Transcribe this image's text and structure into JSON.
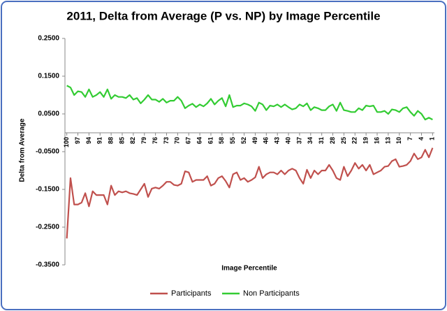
{
  "chart_data": {
    "type": "line",
    "title": "2011, Delta from Average (P vs. NP) by Image Percentile",
    "x_label": "Image Percentile",
    "y_label": "Delta from Average",
    "categories": [
      100,
      null,
      null,
      97,
      null,
      null,
      94,
      null,
      null,
      91,
      null,
      null,
      88,
      null,
      null,
      85,
      null,
      null,
      82,
      null,
      null,
      79,
      null,
      null,
      76,
      null,
      null,
      73,
      null,
      null,
      70,
      null,
      null,
      67,
      null,
      null,
      64,
      null,
      null,
      61,
      null,
      null,
      58,
      null,
      null,
      55,
      null,
      null,
      52,
      null,
      null,
      49,
      null,
      null,
      46,
      null,
      null,
      43,
      null,
      null,
      40,
      null,
      null,
      37,
      null,
      null,
      34,
      null,
      null,
      31,
      null,
      null,
      28,
      null,
      null,
      25,
      null,
      null,
      22,
      null,
      null,
      19,
      null,
      null,
      16,
      null,
      null,
      13,
      null,
      null,
      10,
      null,
      null,
      7,
      null,
      null,
      4,
      null,
      null,
      1
    ],
    "series": [
      {
        "name": "Participants",
        "color": "#c0504d",
        "values": [
          -0.28,
          -0.12,
          -0.19,
          -0.19,
          -0.185,
          -0.16,
          -0.195,
          -0.155,
          -0.165,
          -0.165,
          -0.165,
          -0.19,
          -0.14,
          -0.165,
          -0.155,
          -0.158,
          -0.155,
          -0.16,
          -0.162,
          -0.165,
          -0.15,
          -0.135,
          -0.17,
          -0.148,
          -0.145,
          -0.148,
          -0.14,
          -0.13,
          -0.13,
          -0.138,
          -0.14,
          -0.135,
          -0.102,
          -0.105,
          -0.13,
          -0.125,
          -0.125,
          -0.125,
          -0.115,
          -0.14,
          -0.135,
          -0.12,
          -0.115,
          -0.128,
          -0.145,
          -0.11,
          -0.105,
          -0.125,
          -0.12,
          -0.13,
          -0.125,
          -0.118,
          -0.09,
          -0.12,
          -0.11,
          -0.105,
          -0.105,
          -0.11,
          -0.1,
          -0.11,
          -0.1,
          -0.095,
          -0.1,
          -0.12,
          -0.135,
          -0.098,
          -0.12,
          -0.1,
          -0.11,
          -0.1,
          -0.1,
          -0.085,
          -0.1,
          -0.12,
          -0.125,
          -0.09,
          -0.115,
          -0.1,
          -0.08,
          -0.095,
          -0.085,
          -0.1,
          -0.085,
          -0.11,
          -0.105,
          -0.1,
          -0.09,
          -0.088,
          -0.075,
          -0.07,
          -0.09,
          -0.088,
          -0.085,
          -0.075,
          -0.055,
          -0.07,
          -0.065,
          -0.045,
          -0.065,
          -0.04
        ]
      },
      {
        "name": "Non Participants",
        "color": "#33cc33",
        "values": [
          0.125,
          0.12,
          0.1,
          0.11,
          0.108,
          0.095,
          0.115,
          0.095,
          0.1,
          0.108,
          0.095,
          0.115,
          0.09,
          0.1,
          0.095,
          0.095,
          0.092,
          0.1,
          0.088,
          0.092,
          0.078,
          0.088,
          0.1,
          0.088,
          0.088,
          0.082,
          0.09,
          0.08,
          0.085,
          0.085,
          0.095,
          0.085,
          0.065,
          0.072,
          0.077,
          0.068,
          0.075,
          0.07,
          0.078,
          0.09,
          0.075,
          0.085,
          0.092,
          0.07,
          0.1,
          0.068,
          0.072,
          0.072,
          0.078,
          0.075,
          0.07,
          0.058,
          0.08,
          0.075,
          0.06,
          0.072,
          0.07,
          0.075,
          0.068,
          0.075,
          0.068,
          0.062,
          0.065,
          0.075,
          0.07,
          0.078,
          0.06,
          0.068,
          0.065,
          0.06,
          0.06,
          0.07,
          0.075,
          0.058,
          0.08,
          0.06,
          0.058,
          0.055,
          0.055,
          0.065,
          0.06,
          0.072,
          0.07,
          0.072,
          0.055,
          0.055,
          0.058,
          0.05,
          0.062,
          0.06,
          0.055,
          0.065,
          0.068,
          0.055,
          0.045,
          0.058,
          0.05,
          0.035,
          0.04,
          0.035
        ]
      }
    ],
    "ylim": [
      -0.35,
      0.25
    ],
    "yticks": [
      {
        "value": -0.35,
        "label": "-0.3500"
      },
      {
        "value": -0.25,
        "label": "-0.2500"
      },
      {
        "value": -0.15,
        "label": "-0.1500"
      },
      {
        "value": -0.05,
        "label": "-0.0500"
      },
      {
        "value": 0.05,
        "label": "0.0500"
      },
      {
        "value": 0.15,
        "label": "0.1500"
      },
      {
        "value": 0.25,
        "label": "0.2500"
      }
    ],
    "grid": false,
    "legend": "bottom"
  }
}
